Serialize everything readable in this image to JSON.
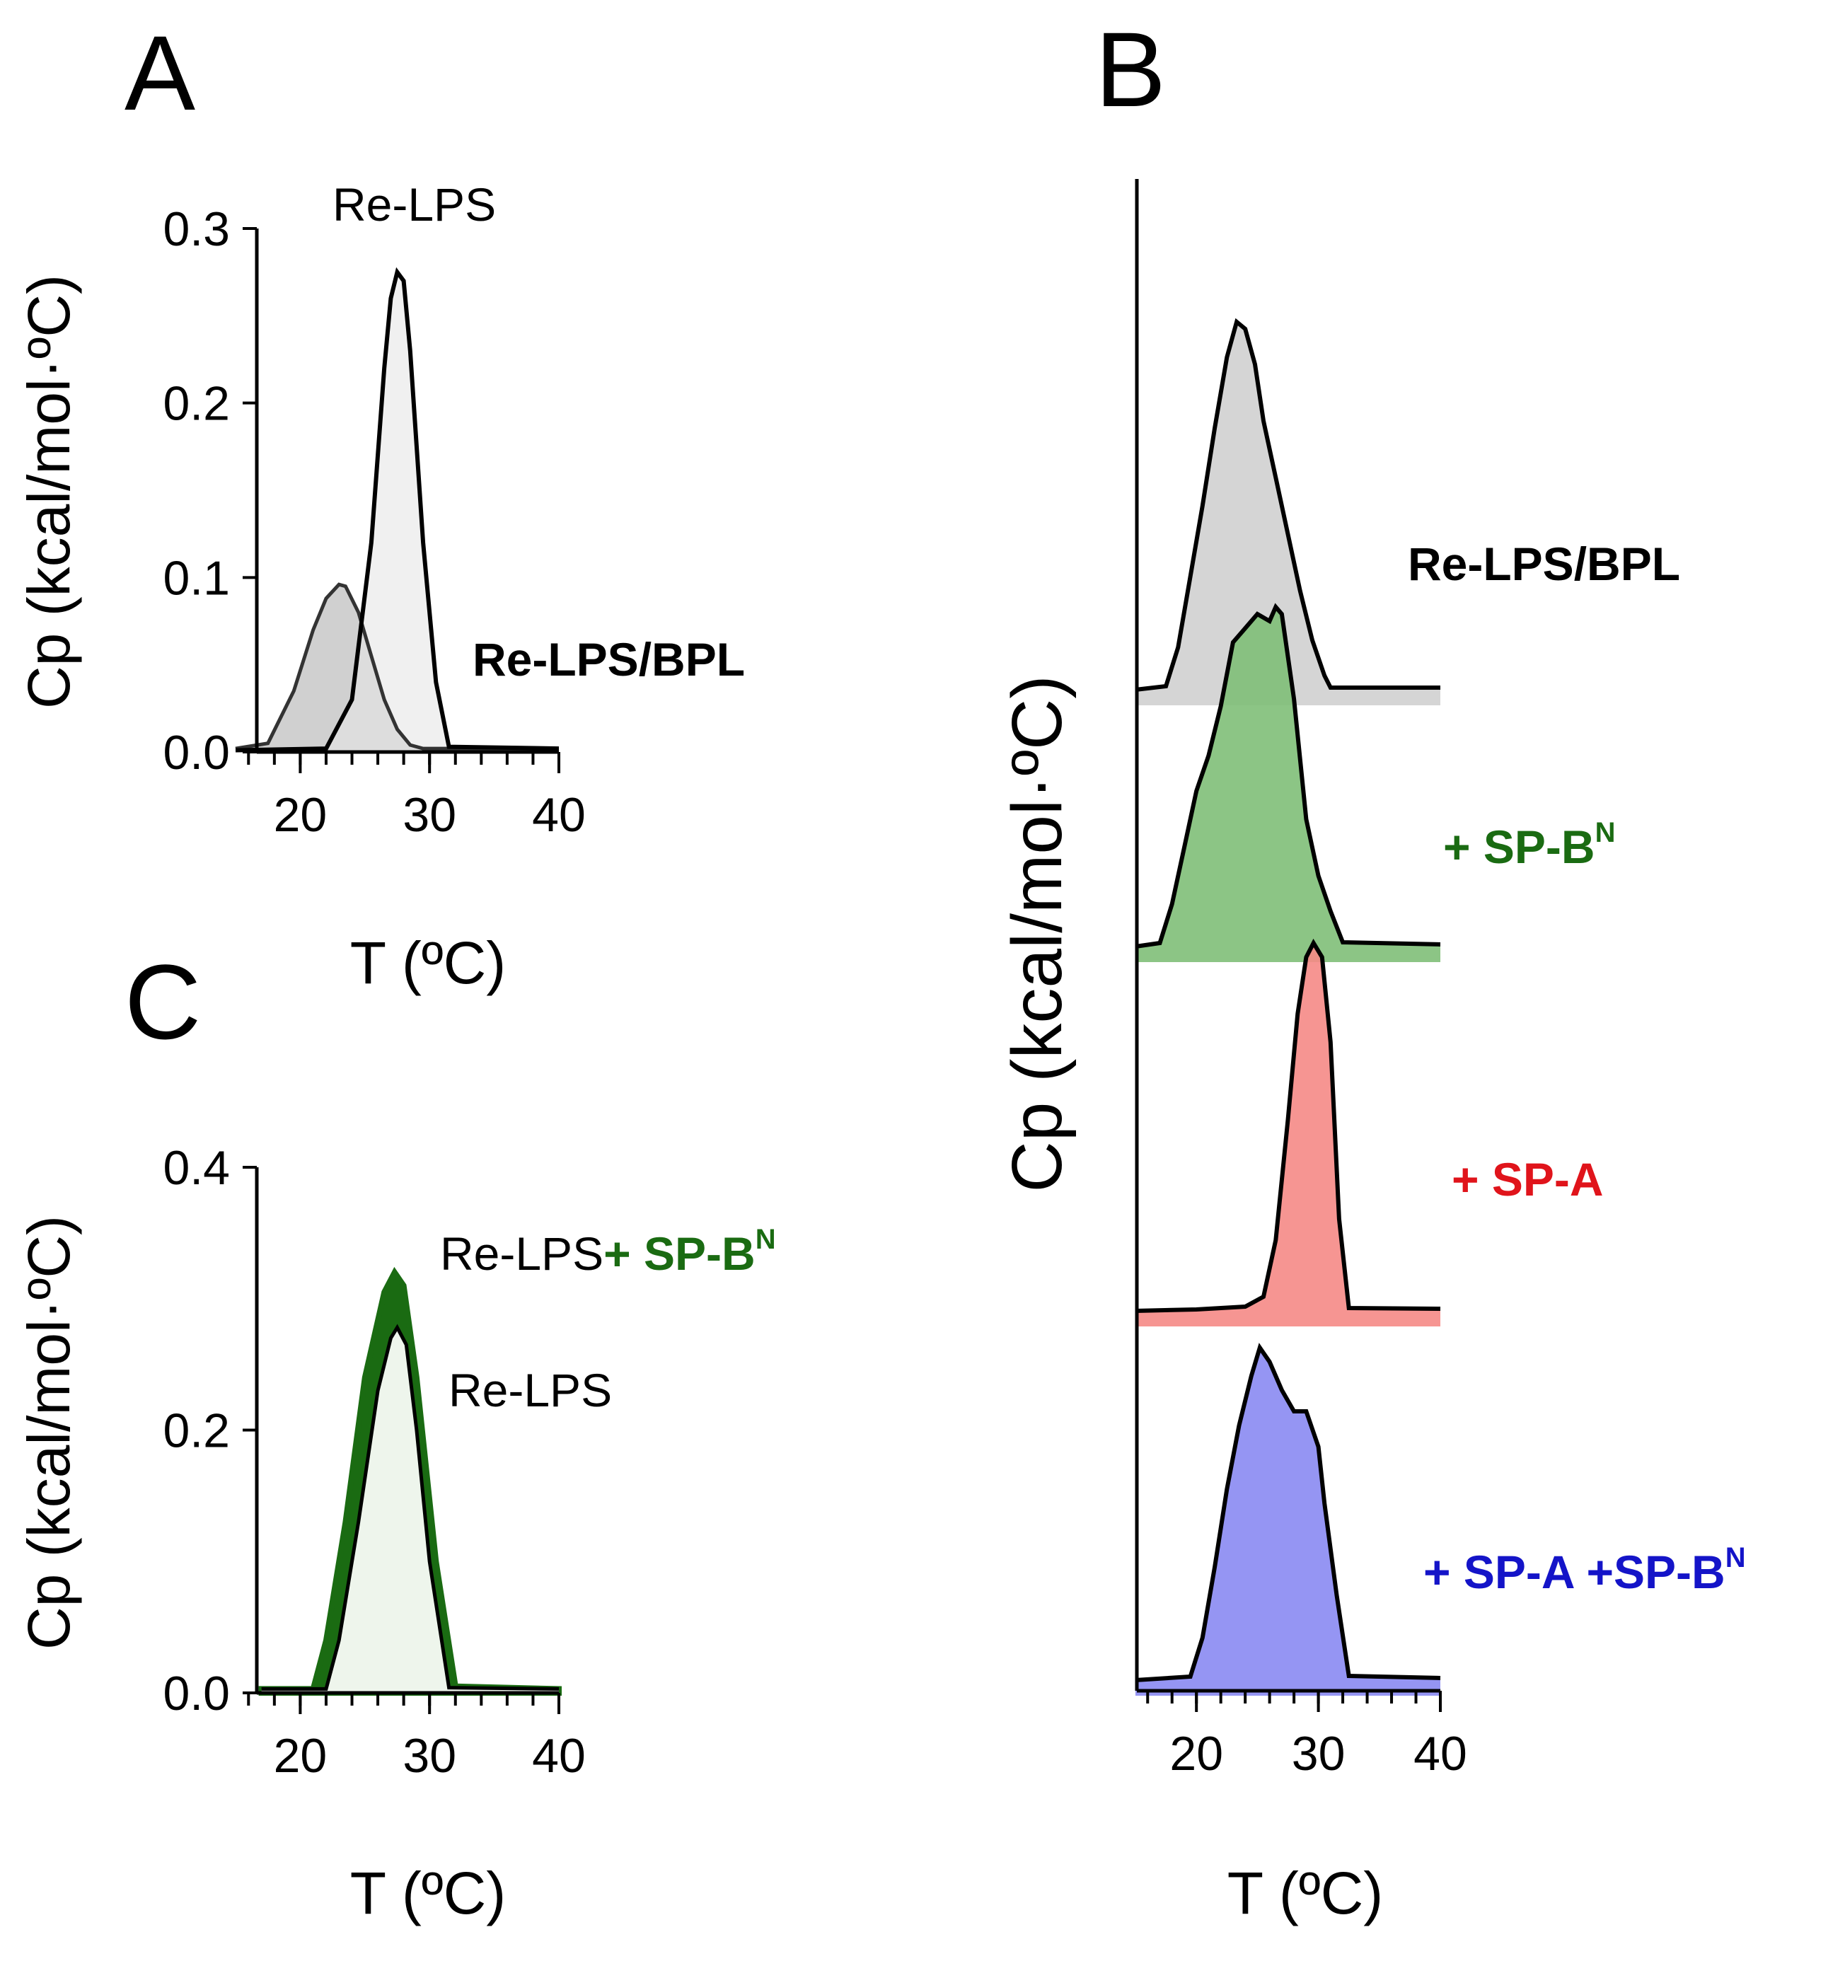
{
  "colors": {
    "black": "#000000",
    "gray_fill": "#d0d0d0",
    "green": "#1a6b12",
    "green_fill": "#7fbf78",
    "red": "#e0141b",
    "red_fill": "#f58a86",
    "blue": "#1414c8",
    "blue_fill": "#8a8af2",
    "light_fill": "#e6e6e6"
  },
  "chart_data": [
    {
      "panel": "A",
      "type": "line",
      "xlabel": "T (ºC)",
      "ylabel": "Cp (kcal/mol·ºC)",
      "xlim": [
        15,
        40
      ],
      "ylim": [
        0,
        0.3
      ],
      "x_ticks": [
        20,
        30,
        40
      ],
      "y_ticks": [
        "0.0",
        "0.1",
        "0.2",
        "0.3"
      ],
      "series": [
        {
          "name": "Re-LPS",
          "x": [
            15,
            22.0,
            24.0,
            25.5,
            26.5,
            27.0,
            27.5,
            28.0,
            28.5,
            29.5,
            30.5,
            31.5,
            40
          ],
          "values": [
            0.001,
            0.002,
            0.03,
            0.12,
            0.22,
            0.26,
            0.275,
            0.27,
            0.23,
            0.12,
            0.04,
            0.003,
            0.002
          ]
        },
        {
          "name": "Re-LPS/BPL",
          "x": [
            15,
            17.5,
            19.5,
            21.0,
            22.0,
            23.0,
            23.5,
            24.5,
            25.5,
            26.5,
            27.5,
            28.5,
            29.5,
            40
          ],
          "values": [
            0.002,
            0.005,
            0.035,
            0.07,
            0.088,
            0.096,
            0.095,
            0.08,
            0.055,
            0.03,
            0.013,
            0.004,
            0.002,
            0.002
          ]
        }
      ],
      "labels": [
        "Re-LPS",
        "Re-LPS/BPL"
      ]
    },
    {
      "panel": "C",
      "type": "line",
      "xlabel": "T (ºC)",
      "ylabel": "Cp (kcal/mol·ºC)",
      "xlim": [
        15,
        40
      ],
      "ylim": [
        0,
        0.4
      ],
      "x_ticks": [
        20,
        30,
        40
      ],
      "y_ticks": [
        "0.0",
        "0.2",
        "0.4"
      ],
      "series": [
        {
          "name": "Re-LPS+ SP-BN",
          "x": [
            17,
            21.0,
            22.0,
            23.5,
            25.0,
            26.5,
            27.3,
            28.0,
            29.0,
            30.5,
            32.0,
            40
          ],
          "values": [
            0.003,
            0.003,
            0.04,
            0.13,
            0.24,
            0.305,
            0.32,
            0.31,
            0.24,
            0.1,
            0.005,
            0.003
          ]
        },
        {
          "name": "Re-LPS",
          "x": [
            17,
            22.0,
            23.0,
            24.5,
            26.0,
            27.0,
            27.5,
            28.2,
            29.0,
            30.0,
            31.5,
            40
          ],
          "values": [
            0.003,
            0.003,
            0.04,
            0.13,
            0.23,
            0.27,
            0.278,
            0.265,
            0.2,
            0.1,
            0.004,
            0.003
          ]
        }
      ],
      "labels": {
        "top_prefix": "Re-LPS",
        "top_green": "+ SP-B",
        "top_sup": "N",
        "bottom": "Re-LPS"
      }
    },
    {
      "panel": "B",
      "type": "area",
      "xlabel": "T (ºC)",
      "ylabel": "Cp (kcal/mol·ºC)",
      "xlim": [
        15,
        40
      ],
      "x_ticks": [
        20,
        30,
        40
      ],
      "series": [
        {
          "name": "Re-LPS/BPL",
          "label": "Re-LPS/BPL",
          "sup": "",
          "color": "black",
          "fill": "gray_fill",
          "x": [
            15,
            17.5,
            18.5,
            19.5,
            20.5,
            21.5,
            22.5,
            23.3,
            24.0,
            24.8,
            25.5,
            26.5,
            27.5,
            28.5,
            29.5,
            30.5,
            31.0,
            40
          ],
          "values": [
            0.0,
            0.005,
            0.06,
            0.16,
            0.26,
            0.37,
            0.47,
            0.52,
            0.51,
            0.46,
            0.38,
            0.3,
            0.22,
            0.14,
            0.07,
            0.02,
            0.003,
            0.003
          ]
        },
        {
          "name": "+ SP-BN",
          "label": "+ SP-B",
          "sup": "N",
          "color": "green",
          "fill": "green_fill",
          "x": [
            15,
            17.0,
            18.0,
            19.0,
            20.0,
            21.0,
            22.0,
            23.0,
            24.0,
            25.0,
            26.0,
            26.5,
            27.0,
            28.0,
            29.0,
            30.0,
            31.0,
            32.0,
            40
          ],
          "values": [
            0.0,
            0.005,
            0.06,
            0.14,
            0.22,
            0.27,
            0.34,
            0.43,
            0.45,
            0.47,
            0.46,
            0.48,
            0.47,
            0.35,
            0.18,
            0.1,
            0.05,
            0.006,
            0.003
          ]
        },
        {
          "name": "+ SP-A",
          "label": "+ SP-A",
          "sup": "",
          "color": "red",
          "fill": "red_fill",
          "x": [
            15,
            20.0,
            24.0,
            25.5,
            26.5,
            27.5,
            28.3,
            29.0,
            29.6,
            30.3,
            31.0,
            31.7,
            32.5,
            40
          ],
          "values": [
            0.0,
            0.002,
            0.006,
            0.02,
            0.1,
            0.27,
            0.42,
            0.5,
            0.52,
            0.5,
            0.38,
            0.13,
            0.004,
            0.003
          ]
        },
        {
          "name": "+ SP-A +SP-BN",
          "label": "+ SP-A +SP-B",
          "sup": "N",
          "color": "blue",
          "fill": "blue_fill",
          "x": [
            15,
            19.5,
            20.5,
            21.5,
            22.5,
            23.5,
            24.5,
            25.2,
            26.0,
            27.0,
            28.0,
            29.0,
            30.0,
            30.5,
            31.5,
            32.5,
            40
          ],
          "values": [
            0.0,
            0.005,
            0.06,
            0.16,
            0.27,
            0.36,
            0.43,
            0.47,
            0.45,
            0.41,
            0.38,
            0.38,
            0.33,
            0.25,
            0.12,
            0.006,
            0.003
          ]
        }
      ]
    }
  ]
}
